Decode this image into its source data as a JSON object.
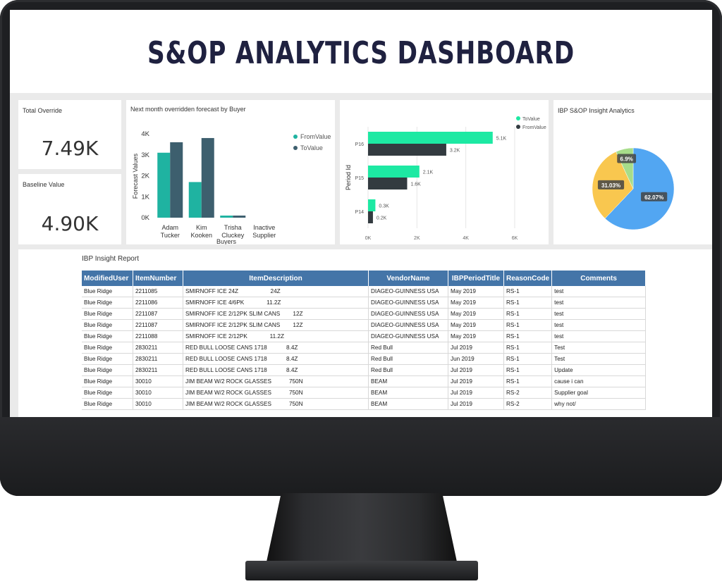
{
  "dashboard": {
    "title": "S&OP ANALYTICS DASHBOARD"
  },
  "kpis": [
    {
      "label": "Total Override",
      "value": "7.49K"
    },
    {
      "label": "Baseline Value",
      "value": "4.90K"
    }
  ],
  "colors": {
    "teal": "#1fb3a1",
    "slate": "#3d5f6e",
    "green": "#1de9a3",
    "dark": "#333b40",
    "pie_blue": "#52a6f2",
    "pie_yellow": "#f9c74f",
    "pie_green": "#a7dd8a",
    "header_blue": "#4475a8",
    "title_navy": "#1f2140"
  },
  "chart_data": [
    {
      "type": "bar",
      "title": "Next month overridden forecast by Buyer",
      "xlabel": "Buyers",
      "ylabel": "Forecast Values",
      "categories": [
        "Adam Tucker",
        "Kim Kooken",
        "Trisha Cluckey",
        "Inactive Supplier"
      ],
      "category_lines": [
        [
          "Adam",
          "Tucker"
        ],
        [
          "Kim",
          "Kooken"
        ],
        [
          "Trisha",
          "Cluckey"
        ],
        [
          "Inactive",
          "Supplier"
        ]
      ],
      "series": [
        {
          "name": "FromValue",
          "values": [
            3100,
            1700,
            100,
            0
          ]
        },
        {
          "name": "ToValue",
          "values": [
            3600,
            3800,
            100,
            0
          ]
        }
      ],
      "ylim": [
        0,
        4000
      ],
      "yticks": [
        "0K",
        "1K",
        "2K",
        "3K",
        "4K"
      ],
      "legend": "top-right"
    },
    {
      "type": "bar",
      "orientation": "horizontal",
      "ylabel": "Period Id",
      "categories": [
        "P16",
        "P15",
        "P14"
      ],
      "series": [
        {
          "name": "ToValue",
          "values": [
            5100,
            2100,
            300
          ],
          "labels": [
            "5.1K",
            "2.1K",
            "0.3K"
          ]
        },
        {
          "name": "FromValue",
          "values": [
            3200,
            1600,
            200
          ],
          "labels": [
            "3.2K",
            "1.6K",
            "0.2K"
          ]
        }
      ],
      "xlim": [
        0,
        6000
      ],
      "xticks": [
        "0K",
        "2K",
        "4K",
        "6K"
      ],
      "legend": "top-right"
    },
    {
      "type": "pie",
      "title": "IBP S&OP Insight Analytics",
      "slices": [
        {
          "value": 62.07,
          "label": "62.07%"
        },
        {
          "value": 31.03,
          "label": "31.03%"
        },
        {
          "value": 6.9,
          "label": "6.9%"
        }
      ]
    }
  ],
  "report": {
    "title": "IBP Insight Report",
    "columns": [
      "ModifiedUser",
      "ItemNumber",
      "ItemDescription",
      "VendorName",
      "IBPPeriodTitle",
      "ReasonCode",
      "Comments"
    ],
    "rows": [
      [
        "Blue Ridge",
        "2211085",
        "SMIRNOFF ICE 24Z                    24Z",
        "DIAGEO-GUINNESS USA",
        "May 2019",
        "RS-1",
        "test"
      ],
      [
        "Blue Ridge",
        "2211086",
        "SMIRNOFF ICE 4/6PK              11.2Z",
        "DIAGEO-GUINNESS USA",
        "May 2019",
        "RS-1",
        "test"
      ],
      [
        "Blue Ridge",
        "2211087",
        "SMIRNOFF ICE 2/12PK SLIM CANS        12Z",
        "DIAGEO-GUINNESS USA",
        "May 2019",
        "RS-1",
        "test"
      ],
      [
        "Blue Ridge",
        "2211087",
        "SMIRNOFF ICE 2/12PK SLIM CANS        12Z",
        "DIAGEO-GUINNESS USA",
        "May 2019",
        "RS-1",
        "test"
      ],
      [
        "Blue Ridge",
        "2211088",
        "SMIRNOFF ICE 2/12PK              11.2Z",
        "DIAGEO-GUINNESS USA",
        "May 2019",
        "RS-1",
        "test"
      ],
      [
        "Blue Ridge",
        "2830211",
        "RED BULL LOOSE CANS 1718            8.4Z",
        "Red Bull",
        "Jul 2019",
        "RS-1",
        "Test"
      ],
      [
        "Blue Ridge",
        "2830211",
        "RED BULL LOOSE CANS 1718            8.4Z",
        "Red Bull",
        "Jun 2019",
        "RS-1",
        "Test"
      ],
      [
        "Blue Ridge",
        "2830211",
        "RED BULL LOOSE CANS 1718            8.4Z",
        "Red Bull",
        "Jul 2019",
        "RS-1",
        "Update"
      ],
      [
        "Blue Ridge",
        "30010",
        "JIM BEAM W/2 ROCK GLASSES           750N",
        "BEAM",
        "Jul 2019",
        "RS-1",
        "cause i can"
      ],
      [
        "Blue Ridge",
        "30010",
        "JIM BEAM W/2 ROCK GLASSES           750N",
        "BEAM",
        "Jul 2019",
        "RS-2",
        "Supplier goal"
      ],
      [
        "Blue Ridge",
        "30010",
        "JIM BEAM W/2 ROCK GLASSES           750N",
        "BEAM",
        "Jul 2019",
        "RS-2",
        "why not/"
      ]
    ]
  }
}
